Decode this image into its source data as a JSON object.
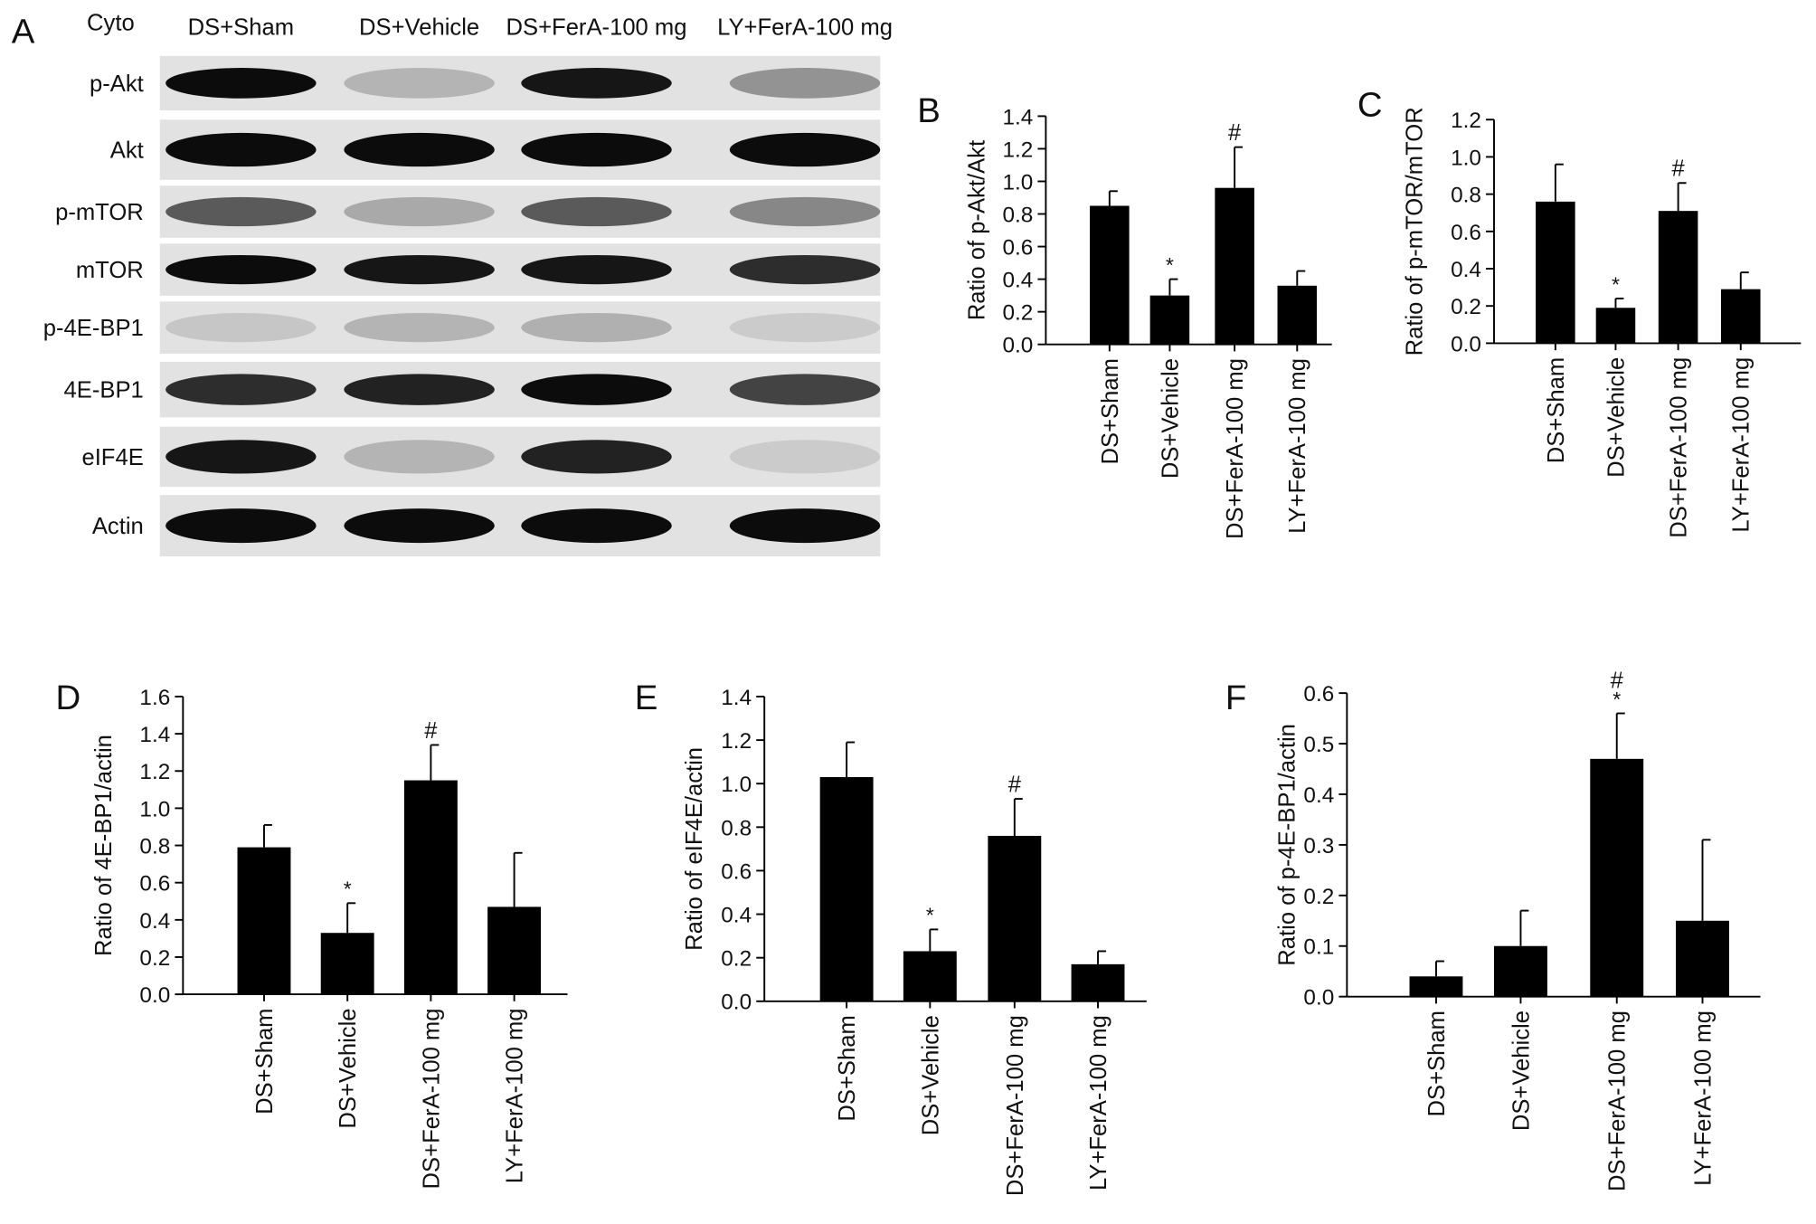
{
  "blot": {
    "panel": "A",
    "fraction": "Cyto",
    "lanes": [
      "DS+Sham",
      "DS+Vehicle",
      "DS+FerA-100 mg",
      "LY+FerA-100 mg"
    ],
    "rows": [
      "p-Akt",
      "Akt",
      "p-mTOR",
      "mTOR",
      "p-4E-BP1",
      "4E-BP1",
      "eIF4E",
      "Actin"
    ]
  },
  "chart_data": [
    {
      "type": "bar",
      "panel": "B",
      "ylabel": "Ratio of p-Akt/Akt",
      "categories": [
        "DS+Sham",
        "DS+Vehicle",
        "DS+FerA-100 mg",
        "LY+FerA-100 mg"
      ],
      "values": [
        0.85,
        0.3,
        0.96,
        0.36
      ],
      "errors": [
        0.09,
        0.1,
        0.25,
        0.09
      ],
      "annotations": [
        null,
        "*",
        "#",
        null
      ],
      "color": "#000000",
      "ylim": [
        0,
        1.4
      ],
      "yticks": [
        {
          "value": 0,
          "label": "0.0"
        },
        0.2,
        0.4,
        0.6,
        0.8,
        {
          "value": 1,
          "label": "1.0"
        },
        1.2,
        1.4
      ]
    },
    {
      "type": "bar",
      "panel": "C",
      "ylabel": "Ratio of p-mTOR/mTOR",
      "categories": [
        "DS+Sham",
        "DS+Vehicle",
        "DS+FerA-100 mg",
        "LY+FerA-100 mg"
      ],
      "values": [
        0.76,
        0.19,
        0.71,
        0.29
      ],
      "errors": [
        0.2,
        0.05,
        0.15,
        0.09
      ],
      "annotations": [
        null,
        "*",
        "#",
        null
      ],
      "color": "#000000",
      "ylim": [
        0,
        1.2
      ],
      "yticks": [
        {
          "value": 0,
          "label": "0.0"
        },
        0.2,
        0.4,
        0.6,
        0.8,
        {
          "value": 1,
          "label": "1.0"
        },
        1.2
      ]
    },
    {
      "type": "bar",
      "panel": "D",
      "ylabel": "Ratio of 4E-BP1/actin",
      "categories": [
        "DS+Sham",
        "DS+Vehicle",
        "DS+FerA-100 mg",
        "LY+FerA-100 mg"
      ],
      "values": [
        0.79,
        0.33,
        1.15,
        0.47
      ],
      "errors": [
        0.12,
        0.16,
        0.19,
        0.29
      ],
      "annotations": [
        null,
        "*",
        "#",
        null
      ],
      "color": "#000000",
      "ylim": [
        0,
        1.6
      ],
      "yticks": [
        {
          "value": 0,
          "label": "0.0"
        },
        0.2,
        0.4,
        0.6,
        0.8,
        {
          "value": 1,
          "label": "1.0"
        },
        1.2,
        1.4,
        1.6
      ]
    },
    {
      "type": "bar",
      "panel": "E",
      "ylabel": "Ratio of eIF4E/actin",
      "categories": [
        "DS+Sham",
        "DS+Vehicle",
        "DS+FerA-100 mg",
        "LY+FerA-100 mg"
      ],
      "values": [
        1.03,
        0.23,
        0.76,
        0.17
      ],
      "errors": [
        0.16,
        0.1,
        0.17,
        0.06
      ],
      "annotations": [
        null,
        "*",
        "#",
        null
      ],
      "color": "#000000",
      "ylim": [
        0,
        1.4
      ],
      "yticks": [
        {
          "value": 0,
          "label": "0.0"
        },
        0.2,
        0.4,
        0.6,
        0.8,
        {
          "value": 1,
          "label": "1.0"
        },
        1.2,
        1.4
      ]
    },
    {
      "type": "bar",
      "panel": "F",
      "ylabel": "Ratio of p-4E-BP1/actin",
      "categories": [
        "DS+Sham",
        "DS+Vehicle",
        "DS+FerA-100 mg",
        "LY+FerA-100 mg"
      ],
      "values": [
        0.04,
        0.1,
        0.47,
        0.15
      ],
      "errors": [
        0.03,
        0.07,
        0.09,
        0.16
      ],
      "annotations": [
        null,
        null,
        [
          "#",
          "*"
        ],
        null
      ],
      "color": "#000000",
      "ylim": [
        0,
        0.6
      ],
      "yticks": [
        {
          "value": 0,
          "label": "0.0"
        },
        0.1,
        0.2,
        0.3,
        0.4,
        0.5,
        0.6
      ]
    }
  ]
}
